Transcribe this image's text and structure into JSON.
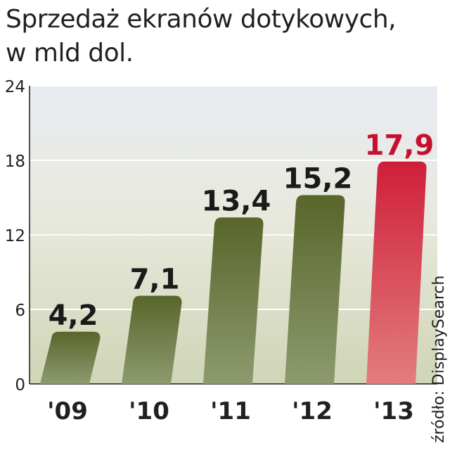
{
  "chart_data": {
    "type": "bar",
    "title_line1": "Sprzedaż ekranów dotykowych,",
    "title_line2": "w mld dol.",
    "categories": [
      "'09",
      "'10",
      "'11",
      "'12",
      "'13"
    ],
    "values": [
      4.2,
      7.1,
      13.4,
      15.2,
      17.9
    ],
    "value_labels": [
      "4,2",
      "7,1",
      "13,4",
      "15,2",
      "17,9"
    ],
    "ylim": [
      0,
      24
    ],
    "yticks": [
      0,
      6,
      12,
      18,
      24
    ],
    "grid": true,
    "highlight_index": 4,
    "colors": {
      "bar": "#58662b",
      "bar_light": "#8d9a6e",
      "highlight": "#cf1f3a",
      "highlight_light": "#e27d7d",
      "highlight_label": "#c8102e",
      "label": "#1a1a1a"
    },
    "source": "źródło: DisplaySearch"
  }
}
